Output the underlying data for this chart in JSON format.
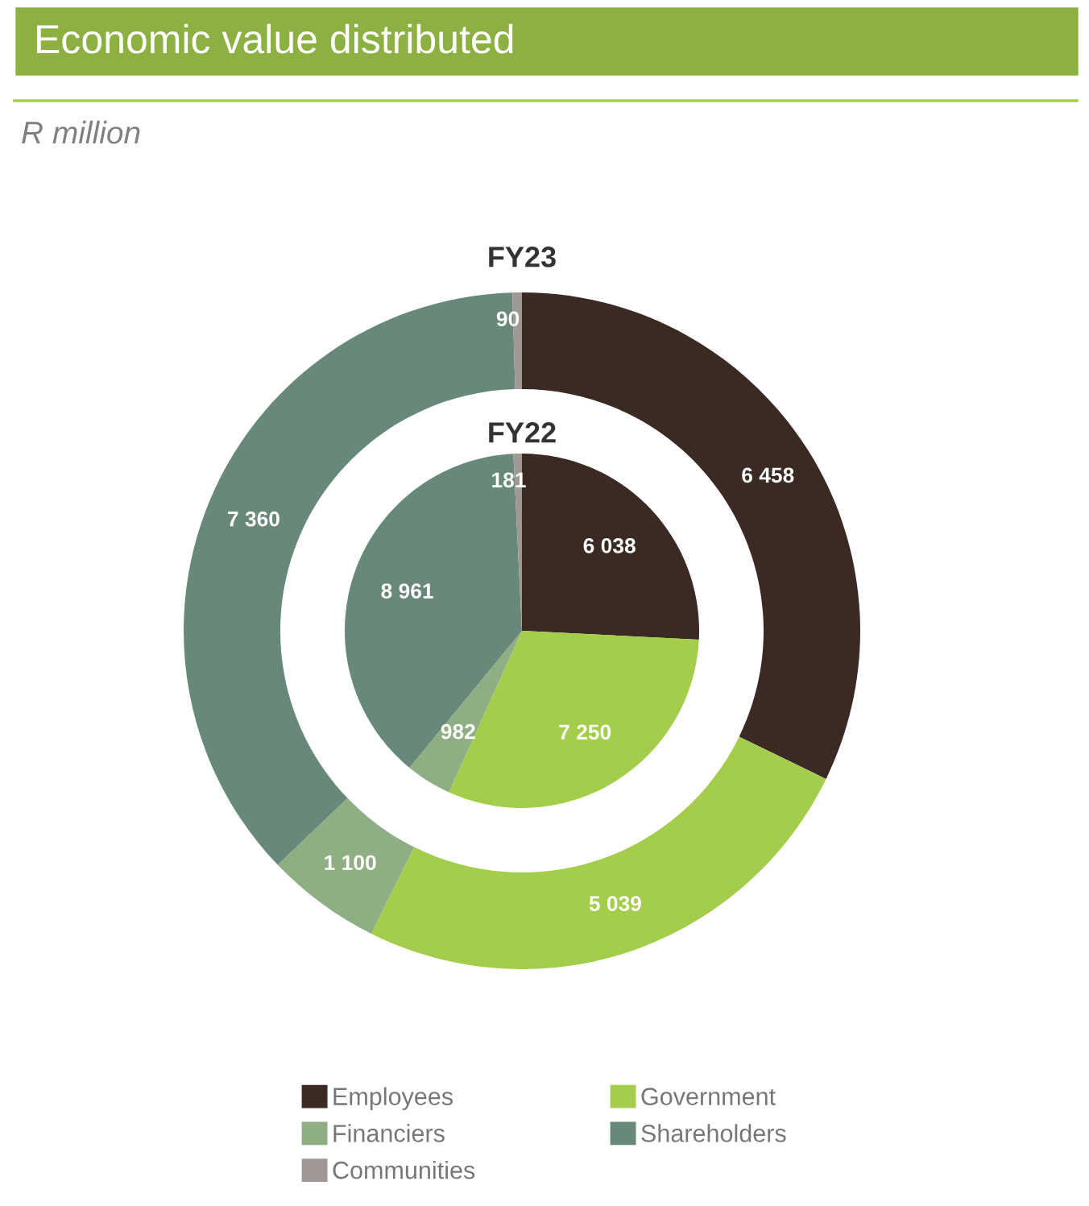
{
  "chart_data": {
    "type": "donut",
    "title": "Economic value distributed",
    "subtitle": "R million",
    "categories": [
      "Employees",
      "Government",
      "Financiers",
      "Shareholders",
      "Communities"
    ],
    "colors": [
      "#3b2a24",
      "#a4cd4b",
      "#8fae84",
      "#68887a",
      "#a09896"
    ],
    "series": [
      {
        "name": "FY23",
        "values": [
          6458,
          5039,
          1100,
          7360,
          90
        ],
        "value_labels": [
          "6 458",
          "5 039",
          "1 100",
          "7 360",
          "90"
        ]
      },
      {
        "name": "FY22",
        "type": "pie",
        "values": [
          6038,
          7250,
          982,
          8961,
          181
        ],
        "value_labels": [
          "6 038",
          "7 250",
          "982",
          "8 961",
          "181"
        ]
      }
    ],
    "legend": "bottom"
  }
}
